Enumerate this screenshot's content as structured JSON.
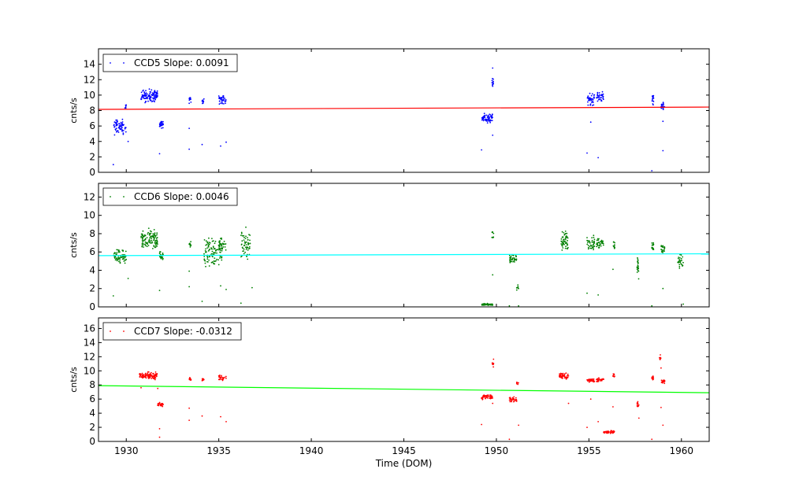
{
  "chart_data": {
    "type": "scatter",
    "xlabel": "Time (DOM)",
    "xlim": [
      1928.5,
      1961.5
    ],
    "xticks": [
      1930,
      1935,
      1940,
      1945,
      1950,
      1955,
      1960
    ],
    "panels": [
      {
        "name": "ccd5",
        "ylabel": "cnts/s",
        "ylim": [
          0,
          16
        ],
        "yticks": [
          0,
          2,
          4,
          6,
          8,
          10,
          12,
          14
        ],
        "point_color": "#0000ff",
        "legend": "CCD5 Slope: 0.0091",
        "fit": {
          "color": "#ff0000",
          "x": [
            1928.5,
            1961.5
          ],
          "y": [
            8.15,
            8.45
          ]
        },
        "clusters": [
          {
            "x0": 1929.3,
            "x1": 1930.0,
            "ymin": 4.5,
            "ymax": 7.2,
            "n": 70
          },
          {
            "x0": 1929.9,
            "x1": 1930.0,
            "ymin": 7.5,
            "ymax": 9.5,
            "n": 6
          },
          {
            "x0": 1930.8,
            "x1": 1931.7,
            "ymin": 8.8,
            "ymax": 11.0,
            "n": 110
          },
          {
            "x0": 1931.8,
            "x1": 1932.0,
            "ymin": 5.6,
            "ymax": 7.0,
            "n": 25
          },
          {
            "x0": 1933.4,
            "x1": 1933.5,
            "ymin": 8.7,
            "ymax": 10.2,
            "n": 10
          },
          {
            "x0": 1934.1,
            "x1": 1934.2,
            "ymin": 8.6,
            "ymax": 9.7,
            "n": 8
          },
          {
            "x0": 1935.0,
            "x1": 1935.4,
            "ymin": 8.5,
            "ymax": 10.3,
            "n": 40
          },
          {
            "x0": 1949.2,
            "x1": 1949.8,
            "ymin": 6.3,
            "ymax": 7.8,
            "n": 70
          },
          {
            "x0": 1949.75,
            "x1": 1949.85,
            "ymin": 10.5,
            "ymax": 12.5,
            "n": 12
          },
          {
            "x0": 1954.9,
            "x1": 1955.3,
            "ymin": 8.4,
            "ymax": 10.6,
            "n": 40
          },
          {
            "x0": 1955.4,
            "x1": 1955.8,
            "ymin": 9.0,
            "ymax": 10.6,
            "n": 35
          },
          {
            "x0": 1958.4,
            "x1": 1958.5,
            "ymin": 8.4,
            "ymax": 10.8,
            "n": 15
          },
          {
            "x0": 1958.9,
            "x1": 1959.1,
            "ymin": 7.8,
            "ymax": 9.2,
            "n": 20
          }
        ],
        "outliers": [
          [
            1929.3,
            1.0
          ],
          [
            1930.1,
            4.0
          ],
          [
            1931.8,
            2.4
          ],
          [
            1933.4,
            3.0
          ],
          [
            1933.4,
            5.7
          ],
          [
            1934.1,
            3.6
          ],
          [
            1935.1,
            3.4
          ],
          [
            1935.4,
            3.9
          ],
          [
            1949.2,
            2.9
          ],
          [
            1949.8,
            4.8
          ],
          [
            1949.8,
            13.5
          ],
          [
            1954.9,
            2.5
          ],
          [
            1955.5,
            1.9
          ],
          [
            1955.1,
            6.5
          ],
          [
            1958.4,
            0.2
          ],
          [
            1959.0,
            6.6
          ],
          [
            1959.0,
            2.8
          ]
        ]
      },
      {
        "name": "ccd6",
        "ylabel": "cnts/s",
        "ylim": [
          0,
          13.5
        ],
        "yticks": [
          0,
          2,
          4,
          6,
          8,
          10,
          12
        ],
        "point_color": "#008000",
        "legend": "CCD6 Slope: 0.0046",
        "fit": {
          "color": "#00ffff",
          "x": [
            1928.5,
            1961.5
          ],
          "y": [
            5.6,
            5.8
          ]
        },
        "clusters": [
          {
            "x0": 1929.3,
            "x1": 1930.0,
            "ymin": 4.5,
            "ymax": 6.5,
            "n": 70
          },
          {
            "x0": 1930.8,
            "x1": 1931.7,
            "ymin": 5.8,
            "ymax": 8.8,
            "n": 110
          },
          {
            "x0": 1931.8,
            "x1": 1932.0,
            "ymin": 4.8,
            "ymax": 6.2,
            "n": 25
          },
          {
            "x0": 1933.4,
            "x1": 1933.5,
            "ymin": 6.0,
            "ymax": 7.8,
            "n": 10
          },
          {
            "x0": 1934.2,
            "x1": 1935.2,
            "ymin": 3.5,
            "ymax": 8.3,
            "n": 110
          },
          {
            "x0": 1935.0,
            "x1": 1935.4,
            "ymin": 5.5,
            "ymax": 7.8,
            "n": 30
          },
          {
            "x0": 1936.2,
            "x1": 1936.7,
            "ymin": 4.5,
            "ymax": 9.0,
            "n": 55
          },
          {
            "x0": 1949.2,
            "x1": 1949.8,
            "ymin": 0.1,
            "ymax": 0.4,
            "n": 60
          },
          {
            "x0": 1949.75,
            "x1": 1949.85,
            "ymin": 7.2,
            "ymax": 8.5,
            "n": 10
          },
          {
            "x0": 1950.7,
            "x1": 1951.1,
            "ymin": 4.6,
            "ymax": 6.0,
            "n": 35
          },
          {
            "x0": 1951.1,
            "x1": 1951.2,
            "ymin": 1.7,
            "ymax": 2.5,
            "n": 8
          },
          {
            "x0": 1953.5,
            "x1": 1953.9,
            "ymin": 5.8,
            "ymax": 8.6,
            "n": 55
          },
          {
            "x0": 1954.9,
            "x1": 1955.3,
            "ymin": 5.8,
            "ymax": 8.3,
            "n": 40
          },
          {
            "x0": 1955.4,
            "x1": 1955.8,
            "ymin": 6.0,
            "ymax": 8.0,
            "n": 35
          },
          {
            "x0": 1956.3,
            "x1": 1956.4,
            "ymin": 6.0,
            "ymax": 7.6,
            "n": 10
          },
          {
            "x0": 1957.6,
            "x1": 1957.7,
            "ymin": 2.6,
            "ymax": 5.8,
            "n": 20
          },
          {
            "x0": 1958.4,
            "x1": 1958.5,
            "ymin": 5.7,
            "ymax": 7.6,
            "n": 15
          },
          {
            "x0": 1958.9,
            "x1": 1959.1,
            "ymin": 5.4,
            "ymax": 7.2,
            "n": 20
          },
          {
            "x0": 1959.8,
            "x1": 1960.1,
            "ymin": 3.8,
            "ymax": 6.2,
            "n": 30
          }
        ],
        "outliers": [
          [
            1929.3,
            1.2
          ],
          [
            1930.1,
            3.1
          ],
          [
            1931.8,
            1.8
          ],
          [
            1933.4,
            2.2
          ],
          [
            1933.4,
            3.9
          ],
          [
            1934.1,
            0.6
          ],
          [
            1935.1,
            2.3
          ],
          [
            1935.4,
            1.9
          ],
          [
            1936.2,
            0.4
          ],
          [
            1936.8,
            2.1
          ],
          [
            1949.8,
            3.5
          ],
          [
            1950.7,
            0.1
          ],
          [
            1951.2,
            0.1
          ],
          [
            1954.9,
            1.5
          ],
          [
            1955.5,
            1.3
          ],
          [
            1956.3,
            4.1
          ],
          [
            1958.4,
            0.1
          ],
          [
            1959.0,
            2.0
          ],
          [
            1960.1,
            0.3
          ]
        ]
      },
      {
        "name": "ccd7",
        "ylabel": "cnts/s",
        "xlabel_visible": true,
        "ylim": [
          0,
          17.5
        ],
        "yticks": [
          0,
          2,
          4,
          6,
          8,
          10,
          12,
          14,
          16
        ],
        "point_color": "#ff0000",
        "legend": "CCD7 Slope: -0.0312",
        "fit": {
          "color": "#00ff00",
          "x": [
            1928.5,
            1961.5
          ],
          "y": [
            7.9,
            6.9
          ]
        },
        "clusters": [
          {
            "x0": 1930.7,
            "x1": 1931.7,
            "ymin": 8.6,
            "ymax": 10.0,
            "n": 110
          },
          {
            "x0": 1931.7,
            "x1": 1932.0,
            "ymin": 4.9,
            "ymax": 5.6,
            "n": 25
          },
          {
            "x0": 1933.4,
            "x1": 1933.5,
            "ymin": 8.3,
            "ymax": 9.4,
            "n": 10
          },
          {
            "x0": 1934.1,
            "x1": 1934.2,
            "ymin": 8.3,
            "ymax": 9.2,
            "n": 8
          },
          {
            "x0": 1935.0,
            "x1": 1935.4,
            "ymin": 8.4,
            "ymax": 9.7,
            "n": 30
          },
          {
            "x0": 1949.2,
            "x1": 1949.8,
            "ymin": 5.8,
            "ymax": 6.8,
            "n": 60
          },
          {
            "x0": 1949.75,
            "x1": 1949.85,
            "ymin": 10.2,
            "ymax": 11.8,
            "n": 10
          },
          {
            "x0": 1950.7,
            "x1": 1951.1,
            "ymin": 5.5,
            "ymax": 6.4,
            "n": 35
          },
          {
            "x0": 1951.1,
            "x1": 1951.2,
            "ymin": 7.9,
            "ymax": 8.8,
            "n": 6
          },
          {
            "x0": 1953.4,
            "x1": 1953.9,
            "ymin": 8.6,
            "ymax": 9.8,
            "n": 55
          },
          {
            "x0": 1954.9,
            "x1": 1955.3,
            "ymin": 8.3,
            "ymax": 9.0,
            "n": 40
          },
          {
            "x0": 1955.4,
            "x1": 1955.8,
            "ymin": 8.3,
            "ymax": 9.1,
            "n": 35
          },
          {
            "x0": 1955.8,
            "x1": 1956.4,
            "ymin": 1.1,
            "ymax": 1.6,
            "n": 45
          },
          {
            "x0": 1956.3,
            "x1": 1956.4,
            "ymin": 8.9,
            "ymax": 9.7,
            "n": 10
          },
          {
            "x0": 1957.6,
            "x1": 1957.7,
            "ymin": 4.6,
            "ymax": 6.0,
            "n": 15
          },
          {
            "x0": 1958.4,
            "x1": 1958.5,
            "ymin": 8.6,
            "ymax": 9.5,
            "n": 15
          },
          {
            "x0": 1958.8,
            "x1": 1958.9,
            "ymin": 11.3,
            "ymax": 12.6,
            "n": 8
          },
          {
            "x0": 1958.9,
            "x1": 1959.1,
            "ymin": 8.0,
            "ymax": 9.0,
            "n": 20
          }
        ],
        "outliers": [
          [
            1930.8,
            7.6
          ],
          [
            1931.7,
            7.5
          ],
          [
            1931.8,
            1.8
          ],
          [
            1931.8,
            0.6
          ],
          [
            1933.4,
            3.0
          ],
          [
            1933.4,
            4.7
          ],
          [
            1934.1,
            3.6
          ],
          [
            1935.1,
            3.5
          ],
          [
            1935.4,
            2.8
          ],
          [
            1949.2,
            2.4
          ],
          [
            1949.8,
            5.4
          ],
          [
            1950.7,
            0.3
          ],
          [
            1951.2,
            2.3
          ],
          [
            1953.9,
            5.4
          ],
          [
            1954.9,
            2.0
          ],
          [
            1955.5,
            2.8
          ],
          [
            1955.1,
            6.0
          ],
          [
            1956.3,
            4.9
          ],
          [
            1957.7,
            3.3
          ],
          [
            1958.4,
            0.3
          ],
          [
            1958.9,
            4.8
          ],
          [
            1959.0,
            2.3
          ],
          [
            1958.9,
            10.4
          ]
        ]
      }
    ]
  }
}
